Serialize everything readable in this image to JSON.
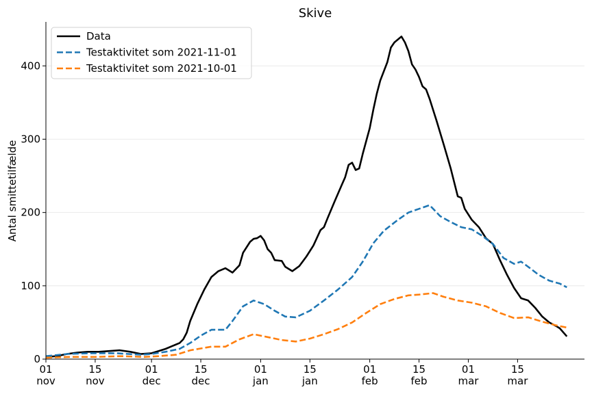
{
  "chart_data": {
    "type": "line",
    "title": "Skive",
    "xlabel": "",
    "ylabel": "Antal smittetilfælde",
    "x_start": "2021-11-01",
    "x_end": "2022-03-29",
    "ylim": [
      0,
      460
    ],
    "yticks": [
      0,
      100,
      200,
      300,
      400
    ],
    "grid": "horizontal",
    "legend_position": "top-left",
    "xticks": [
      {
        "date": "2021-11-01",
        "day": "01",
        "month": "nov"
      },
      {
        "date": "2021-11-15",
        "day": "15",
        "month": "nov"
      },
      {
        "date": "2021-12-01",
        "day": "01",
        "month": "dec"
      },
      {
        "date": "2021-12-15",
        "day": "15",
        "month": "dec"
      },
      {
        "date": "2022-01-01",
        "day": "01",
        "month": "jan"
      },
      {
        "date": "2022-01-15",
        "day": "15",
        "month": "jan"
      },
      {
        "date": "2022-02-01",
        "day": "01",
        "month": "feb"
      },
      {
        "date": "2022-02-15",
        "day": "15",
        "month": "feb"
      },
      {
        "date": "2022-03-01",
        "day": "01",
        "month": "mar"
      },
      {
        "date": "2022-03-15",
        "day": "15",
        "month": "mar"
      }
    ],
    "series": [
      {
        "name": "Data",
        "color": "#000000",
        "style": "solid",
        "points": [
          [
            "2021-11-01",
            3
          ],
          [
            "2021-11-04",
            4
          ],
          [
            "2021-11-07",
            7
          ],
          [
            "2021-11-10",
            9
          ],
          [
            "2021-11-13",
            10
          ],
          [
            "2021-11-16",
            10
          ],
          [
            "2021-11-19",
            11
          ],
          [
            "2021-11-22",
            12
          ],
          [
            "2021-11-25",
            10
          ],
          [
            "2021-11-28",
            7
          ],
          [
            "2021-12-01",
            8
          ],
          [
            "2021-12-03",
            11
          ],
          [
            "2021-12-05",
            14
          ],
          [
            "2021-12-07",
            18
          ],
          [
            "2021-12-09",
            22
          ],
          [
            "2021-12-10",
            27
          ],
          [
            "2021-12-11",
            36
          ],
          [
            "2021-12-12",
            52
          ],
          [
            "2021-12-14",
            75
          ],
          [
            "2021-12-16",
            95
          ],
          [
            "2021-12-18",
            112
          ],
          [
            "2021-12-20",
            120
          ],
          [
            "2021-12-22",
            124
          ],
          [
            "2021-12-24",
            118
          ],
          [
            "2021-12-26",
            128
          ],
          [
            "2021-12-27",
            145
          ],
          [
            "2021-12-29",
            160
          ],
          [
            "2021-12-30",
            164
          ],
          [
            "2021-12-31",
            165
          ],
          [
            "2022-01-01",
            168
          ],
          [
            "2022-01-02",
            162
          ],
          [
            "2022-01-03",
            150
          ],
          [
            "2022-01-04",
            145
          ],
          [
            "2022-01-05",
            135
          ],
          [
            "2022-01-07",
            134
          ],
          [
            "2022-01-08",
            126
          ],
          [
            "2022-01-10",
            120
          ],
          [
            "2022-01-12",
            127
          ],
          [
            "2022-01-14",
            140
          ],
          [
            "2022-01-16",
            155
          ],
          [
            "2022-01-18",
            176
          ],
          [
            "2022-01-19",
            180
          ],
          [
            "2022-01-20",
            192
          ],
          [
            "2022-01-22",
            215
          ],
          [
            "2022-01-24",
            237
          ],
          [
            "2022-01-25",
            248
          ],
          [
            "2022-01-26",
            265
          ],
          [
            "2022-01-27",
            268
          ],
          [
            "2022-01-28",
            258
          ],
          [
            "2022-01-29",
            260
          ],
          [
            "2022-01-30",
            280
          ],
          [
            "2022-02-01",
            315
          ],
          [
            "2022-02-02",
            340
          ],
          [
            "2022-02-03",
            362
          ],
          [
            "2022-02-04",
            380
          ],
          [
            "2022-02-06",
            405
          ],
          [
            "2022-02-07",
            425
          ],
          [
            "2022-02-08",
            432
          ],
          [
            "2022-02-10",
            440
          ],
          [
            "2022-02-11",
            432
          ],
          [
            "2022-02-12",
            420
          ],
          [
            "2022-02-13",
            402
          ],
          [
            "2022-02-14",
            395
          ],
          [
            "2022-02-15",
            385
          ],
          [
            "2022-02-16",
            372
          ],
          [
            "2022-02-17",
            368
          ],
          [
            "2022-02-18",
            355
          ],
          [
            "2022-02-20",
            325
          ],
          [
            "2022-02-22",
            293
          ],
          [
            "2022-02-24",
            260
          ],
          [
            "2022-02-26",
            222
          ],
          [
            "2022-02-27",
            220
          ],
          [
            "2022-02-28",
            205
          ],
          [
            "2022-03-02",
            190
          ],
          [
            "2022-03-04",
            180
          ],
          [
            "2022-03-06",
            165
          ],
          [
            "2022-03-08",
            157
          ],
          [
            "2022-03-10",
            135
          ],
          [
            "2022-03-12",
            115
          ],
          [
            "2022-03-14",
            97
          ],
          [
            "2022-03-16",
            83
          ],
          [
            "2022-03-18",
            80
          ],
          [
            "2022-03-20",
            70
          ],
          [
            "2022-03-22",
            58
          ],
          [
            "2022-03-24",
            50
          ],
          [
            "2022-03-26",
            45
          ],
          [
            "2022-03-27",
            42
          ],
          [
            "2022-03-29",
            31
          ]
        ]
      },
      {
        "name": "Testaktivitet som 2021-11-01",
        "color": "#1f77b4",
        "style": "dashed",
        "points": [
          [
            "2021-11-01",
            4
          ],
          [
            "2021-11-07",
            7
          ],
          [
            "2021-11-14",
            8
          ],
          [
            "2021-11-21",
            8
          ],
          [
            "2021-11-28",
            6
          ],
          [
            "2021-12-01",
            7
          ],
          [
            "2021-12-05",
            10
          ],
          [
            "2021-12-09",
            14
          ],
          [
            "2021-12-12",
            22
          ],
          [
            "2021-12-15",
            32
          ],
          [
            "2021-12-18",
            40
          ],
          [
            "2021-12-22",
            40
          ],
          [
            "2021-12-24",
            52
          ],
          [
            "2021-12-27",
            72
          ],
          [
            "2021-12-30",
            80
          ],
          [
            "2022-01-02",
            75
          ],
          [
            "2022-01-05",
            66
          ],
          [
            "2022-01-08",
            58
          ],
          [
            "2022-01-11",
            57
          ],
          [
            "2022-01-15",
            66
          ],
          [
            "2022-01-19",
            80
          ],
          [
            "2022-01-23",
            95
          ],
          [
            "2022-01-27",
            112
          ],
          [
            "2022-01-30",
            133
          ],
          [
            "2022-02-02",
            158
          ],
          [
            "2022-02-05",
            175
          ],
          [
            "2022-02-09",
            190
          ],
          [
            "2022-02-12",
            200
          ],
          [
            "2022-02-15",
            205
          ],
          [
            "2022-02-18",
            210
          ],
          [
            "2022-02-21",
            195
          ],
          [
            "2022-02-24",
            187
          ],
          [
            "2022-02-27",
            180
          ],
          [
            "2022-03-02",
            177
          ],
          [
            "2022-03-05",
            168
          ],
          [
            "2022-03-08",
            157
          ],
          [
            "2022-03-11",
            138
          ],
          [
            "2022-03-14",
            130
          ],
          [
            "2022-03-16",
            133
          ],
          [
            "2022-03-18",
            126
          ],
          [
            "2022-03-21",
            115
          ],
          [
            "2022-03-24",
            107
          ],
          [
            "2022-03-27",
            103
          ],
          [
            "2022-03-29",
            98
          ]
        ]
      },
      {
        "name": "Testaktivitet som 2021-10-01",
        "color": "#ff7f0e",
        "style": "dashed",
        "points": [
          [
            "2021-11-01",
            2
          ],
          [
            "2021-11-08",
            3
          ],
          [
            "2021-11-15",
            3
          ],
          [
            "2021-11-22",
            4
          ],
          [
            "2021-11-29",
            3
          ],
          [
            "2021-12-03",
            4
          ],
          [
            "2021-12-08",
            6
          ],
          [
            "2021-12-12",
            12
          ],
          [
            "2021-12-18",
            17
          ],
          [
            "2021-12-22",
            17
          ],
          [
            "2021-12-26",
            27
          ],
          [
            "2021-12-30",
            34
          ],
          [
            "2022-01-03",
            30
          ],
          [
            "2022-01-07",
            26
          ],
          [
            "2022-01-11",
            24
          ],
          [
            "2022-01-15",
            28
          ],
          [
            "2022-01-19",
            34
          ],
          [
            "2022-01-23",
            41
          ],
          [
            "2022-01-27",
            50
          ],
          [
            "2022-01-31",
            63
          ],
          [
            "2022-02-04",
            75
          ],
          [
            "2022-02-08",
            82
          ],
          [
            "2022-02-12",
            87
          ],
          [
            "2022-02-15",
            88
          ],
          [
            "2022-02-19",
            90
          ],
          [
            "2022-02-22",
            85
          ],
          [
            "2022-02-26",
            80
          ],
          [
            "2022-03-02",
            77
          ],
          [
            "2022-03-06",
            72
          ],
          [
            "2022-03-10",
            63
          ],
          [
            "2022-03-14",
            56
          ],
          [
            "2022-03-18",
            57
          ],
          [
            "2022-03-22",
            51
          ],
          [
            "2022-03-26",
            46
          ],
          [
            "2022-03-29",
            43
          ]
        ]
      }
    ]
  }
}
